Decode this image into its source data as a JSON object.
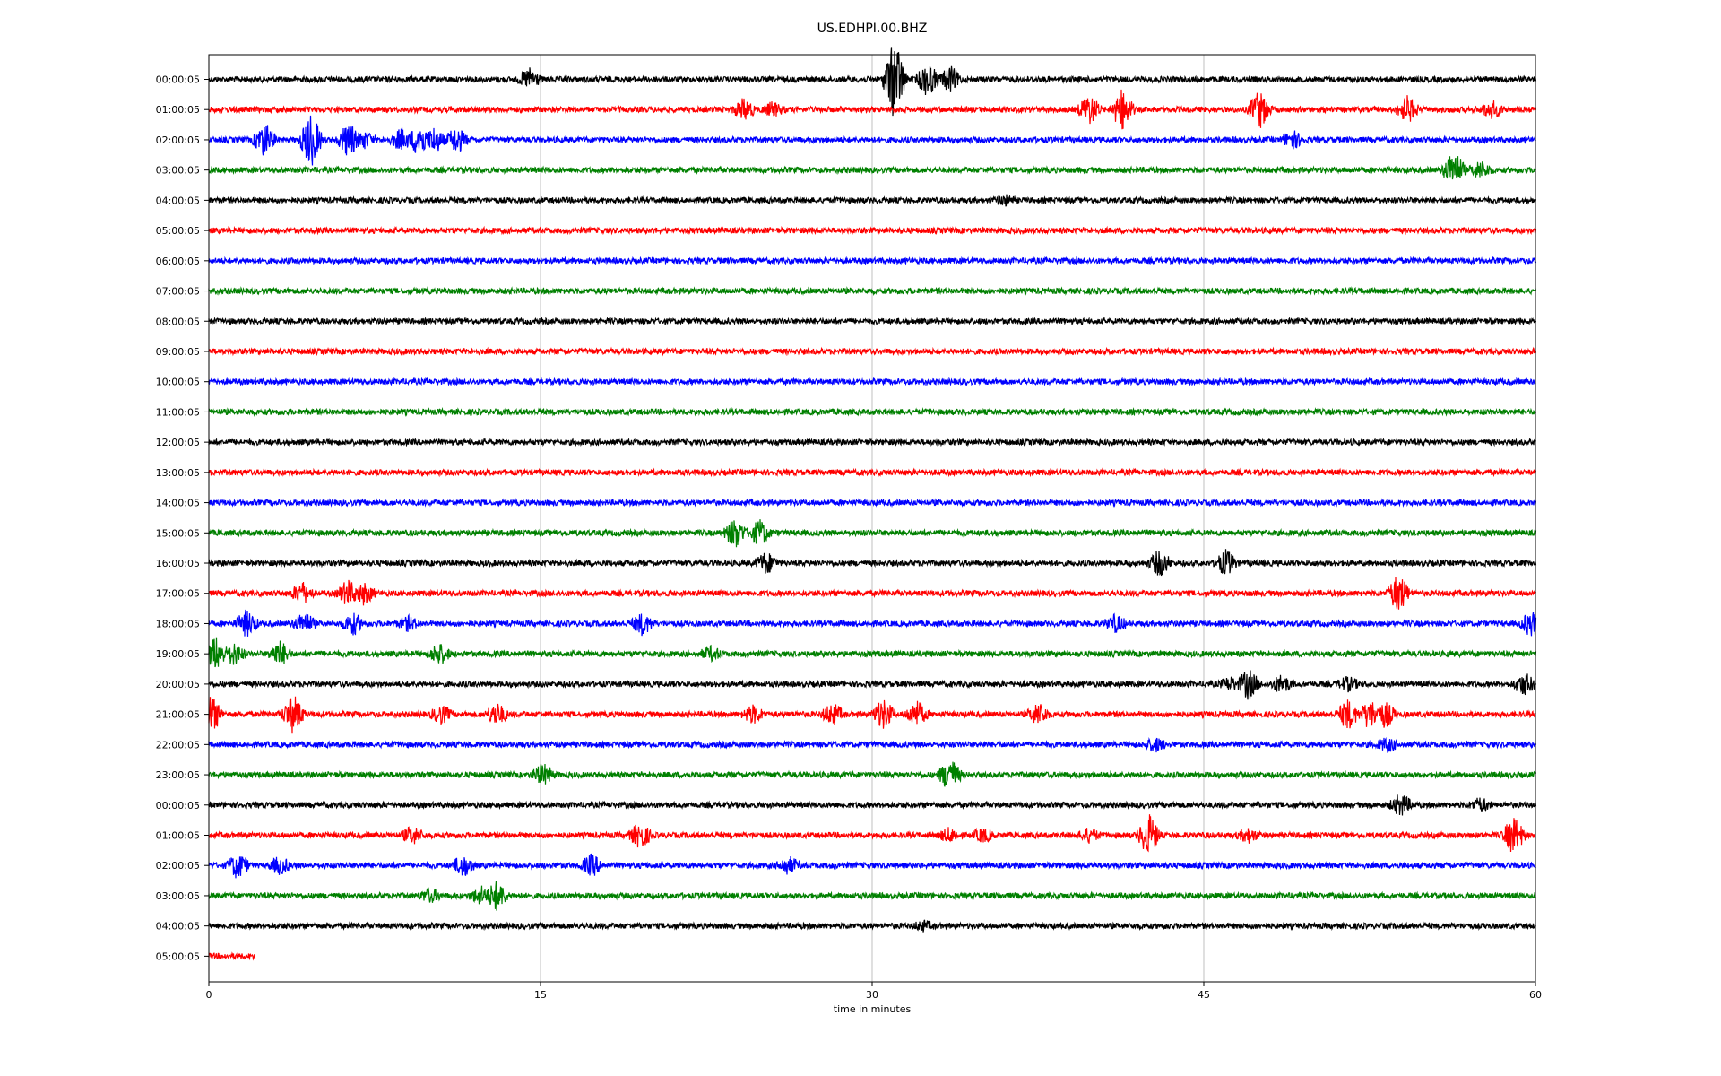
{
  "chart_data": {
    "type": "line",
    "title": "US.EDHPI.00.BHZ",
    "xlabel": "time in minutes",
    "ylabel": "",
    "xlim": [
      0,
      60
    ],
    "xticks": [
      0,
      15,
      30,
      45,
      60
    ],
    "grid": "vertical",
    "trace_colors": [
      "#000000",
      "#ff0000",
      "#0000ff",
      "#008000"
    ],
    "series": [
      {
        "label": "00:00:05",
        "events": [
          [
            14.5,
            0.5
          ],
          [
            31,
            2.0
          ],
          [
            32.5,
            0.8
          ],
          [
            33.5,
            0.6
          ]
        ]
      },
      {
        "label": "01:00:05",
        "events": [
          [
            24.2,
            0.5
          ],
          [
            25.5,
            0.3
          ],
          [
            39.8,
            0.7
          ],
          [
            41.3,
            1.0
          ],
          [
            47.5,
            0.9
          ],
          [
            54.2,
            0.6
          ],
          [
            58,
            0.4
          ]
        ]
      },
      {
        "label": "02:00:05",
        "events": [
          [
            2.5,
            0.8
          ],
          [
            4.6,
            1.3
          ],
          [
            6.3,
            0.8
          ],
          [
            7,
            0.4
          ],
          [
            8.7,
            0.5
          ],
          [
            9.5,
            0.8
          ],
          [
            10.2,
            0.6
          ],
          [
            11.2,
            0.6
          ],
          [
            49,
            0.4
          ]
        ]
      },
      {
        "label": "03:00:05",
        "events": [
          [
            56.3,
            0.9
          ],
          [
            57.5,
            0.4
          ]
        ]
      },
      {
        "label": "04:00:05",
        "events": [
          [
            36,
            0.2
          ]
        ]
      },
      {
        "label": "05:00:05",
        "events": []
      },
      {
        "label": "06:00:05",
        "events": []
      },
      {
        "label": "07:00:05",
        "events": []
      },
      {
        "label": "08:00:05",
        "events": []
      },
      {
        "label": "09:00:05",
        "events": []
      },
      {
        "label": "10:00:05",
        "events": []
      },
      {
        "label": "11:00:05",
        "events": []
      },
      {
        "label": "12:00:05",
        "events": []
      },
      {
        "label": "13:00:05",
        "events": []
      },
      {
        "label": "14:00:05",
        "events": []
      },
      {
        "label": "15:00:05",
        "events": [
          [
            23.8,
            0.7
          ],
          [
            24.9,
            0.6
          ]
        ]
      },
      {
        "label": "16:00:05",
        "events": [
          [
            25.2,
            0.5
          ],
          [
            43,
            0.6
          ],
          [
            46,
            0.6
          ]
        ]
      },
      {
        "label": "17:00:05",
        "events": [
          [
            4.2,
            0.5
          ],
          [
            6.3,
            0.6
          ],
          [
            7,
            0.5
          ],
          [
            53.8,
            0.9
          ]
        ]
      },
      {
        "label": "18:00:05",
        "events": [
          [
            1.7,
            0.6
          ],
          [
            4.3,
            0.5
          ],
          [
            6.5,
            0.5
          ],
          [
            9,
            0.3
          ],
          [
            19.6,
            0.5
          ],
          [
            41,
            0.4
          ],
          [
            59.8,
            0.6
          ]
        ]
      },
      {
        "label": "19:00:05",
        "events": [
          [
            0.3,
            0.8
          ],
          [
            1.1,
            0.5
          ],
          [
            3.2,
            0.6
          ],
          [
            10.4,
            0.5
          ],
          [
            22.7,
            0.3
          ]
        ]
      },
      {
        "label": "20:00:05",
        "events": [
          [
            46.2,
            0.3
          ],
          [
            47,
            0.7
          ],
          [
            48.5,
            0.4
          ],
          [
            51.5,
            0.3
          ],
          [
            59.5,
            0.5
          ]
        ]
      },
      {
        "label": "21:00:05",
        "events": [
          [
            0.1,
            0.9
          ],
          [
            3.8,
            0.9
          ],
          [
            10.5,
            0.4
          ],
          [
            13,
            0.5
          ],
          [
            24.6,
            0.4
          ],
          [
            28.2,
            0.5
          ],
          [
            30.5,
            0.7
          ],
          [
            32,
            0.6
          ],
          [
            37.5,
            0.5
          ],
          [
            51.5,
            0.7
          ],
          [
            52.5,
            0.7
          ],
          [
            53.2,
            0.6
          ]
        ]
      },
      {
        "label": "22:00:05",
        "events": [
          [
            42.8,
            0.3
          ],
          [
            53.3,
            0.3
          ]
        ]
      },
      {
        "label": "23:00:05",
        "events": [
          [
            15.1,
            0.5
          ],
          [
            33.5,
            0.8
          ]
        ]
      },
      {
        "label": "00:00:05",
        "events": [
          [
            53.9,
            0.5
          ],
          [
            57.5,
            0.3
          ]
        ]
      },
      {
        "label": "01:00:05",
        "events": [
          [
            9.2,
            0.4
          ],
          [
            19.5,
            0.6
          ],
          [
            33.5,
            0.3
          ],
          [
            35,
            0.3
          ],
          [
            39.8,
            0.3
          ],
          [
            42.5,
            1.0
          ],
          [
            47,
            0.3
          ],
          [
            59,
            0.9
          ]
        ]
      },
      {
        "label": "02:00:05",
        "events": [
          [
            1.3,
            0.6
          ],
          [
            3.2,
            0.4
          ],
          [
            11.5,
            0.5
          ],
          [
            17.3,
            0.5
          ],
          [
            26.2,
            0.4
          ]
        ]
      },
      {
        "label": "03:00:05",
        "events": [
          [
            10,
            0.3
          ],
          [
            12.3,
            0.4
          ],
          [
            13,
            0.7
          ]
        ]
      },
      {
        "label": "04:00:05",
        "events": [
          [
            32.3,
            0.2
          ]
        ]
      },
      {
        "label": "05:00:05",
        "events": [],
        "end_minute": 2.1
      }
    ]
  }
}
